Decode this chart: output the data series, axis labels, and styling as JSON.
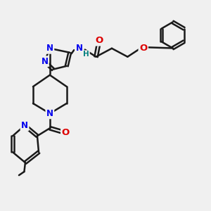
{
  "bg_color": "#f0f0f0",
  "bond_color": "#1a1a1a",
  "bond_width": 1.8,
  "atom_colors": {
    "N": "#0000ee",
    "O": "#dd0000",
    "H": "#008080",
    "C": "#1a1a1a"
  },
  "font_size_atom": 8.5,
  "fig_size": [
    3.0,
    3.0
  ],
  "dpi": 100
}
